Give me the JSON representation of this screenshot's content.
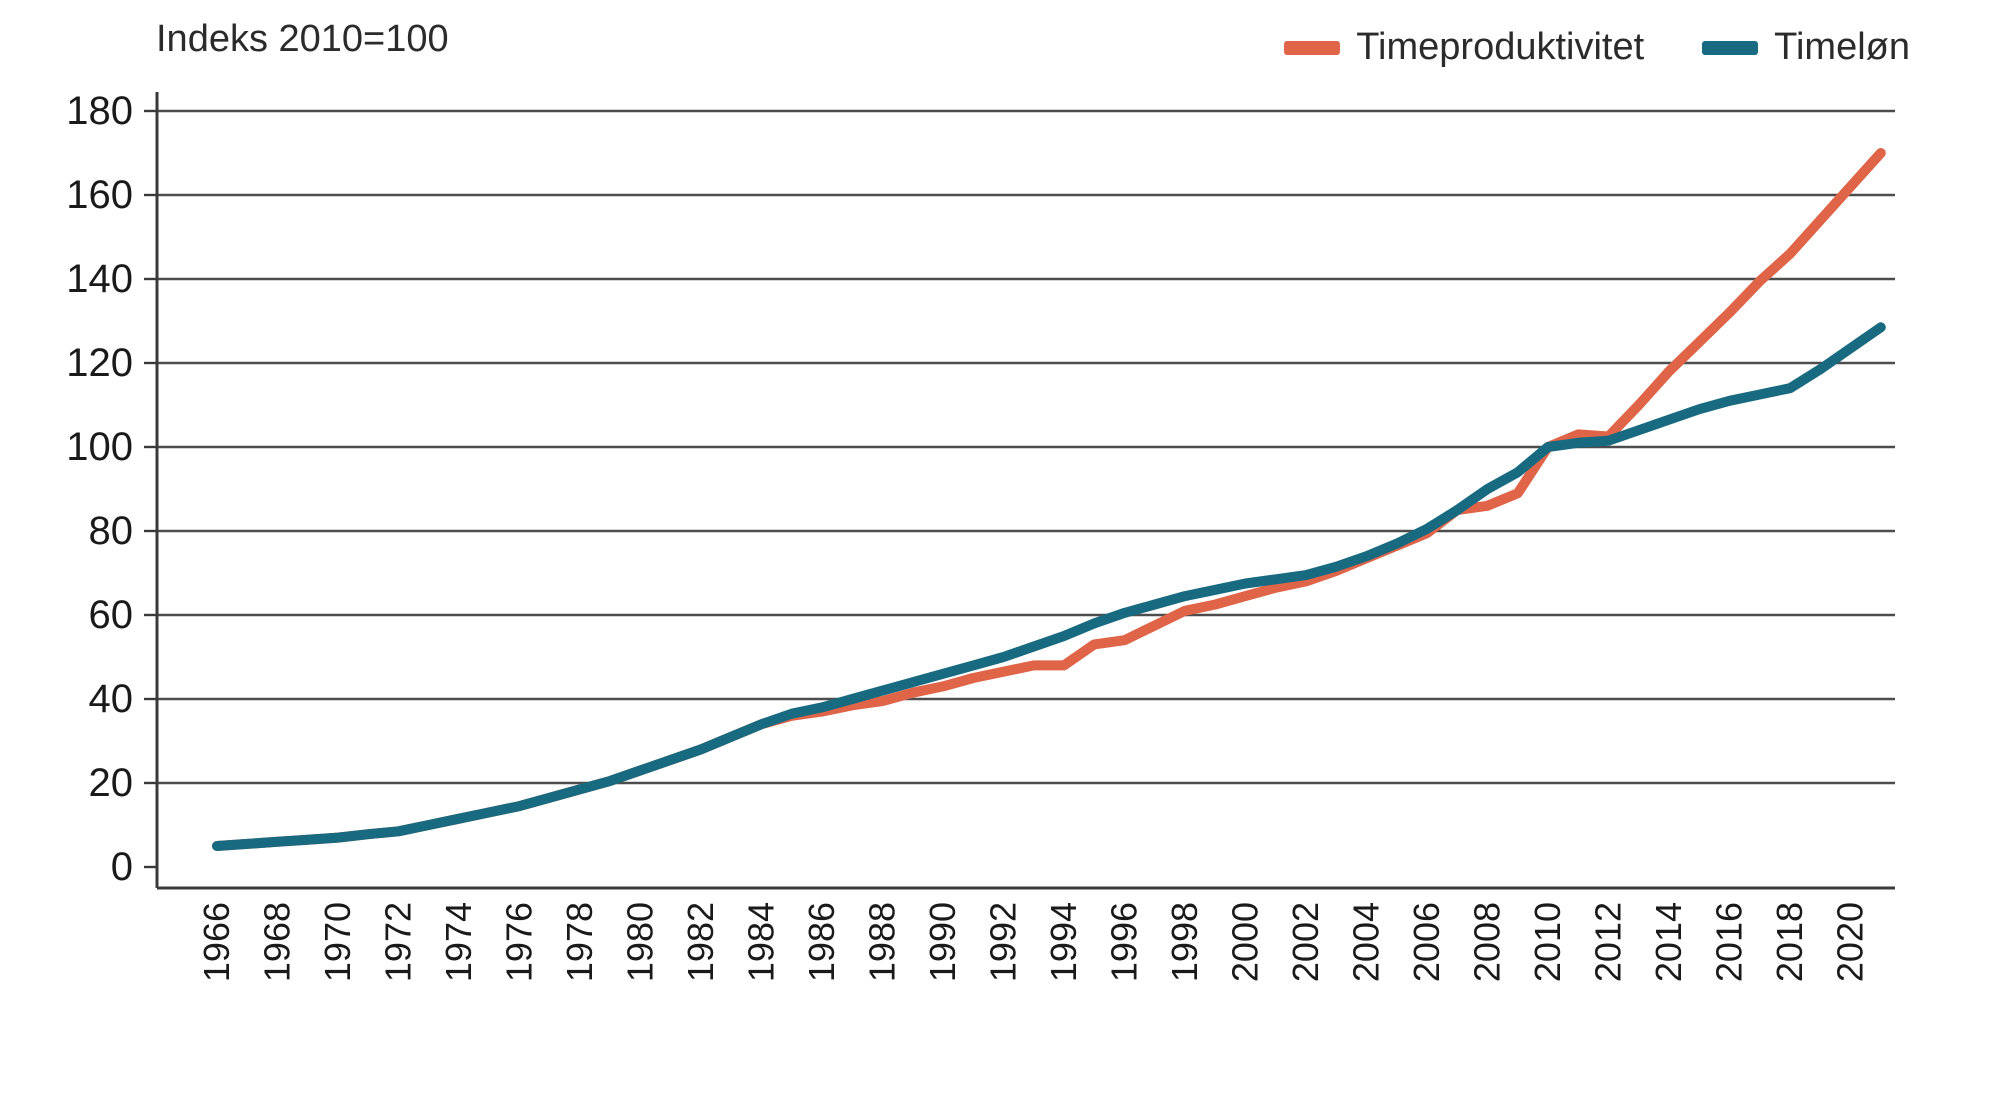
{
  "chart_data": {
    "type": "line",
    "title": "Indeks 2010=100",
    "legend_position": "top-right",
    "grid": "horizontal",
    "ylim": [
      0,
      180
    ],
    "ytick_step": 20,
    "xticks": [
      1966,
      1968,
      1970,
      1972,
      1974,
      1976,
      1978,
      1980,
      1982,
      1984,
      1986,
      1988,
      1990,
      1992,
      1994,
      1996,
      1998,
      2000,
      2002,
      2004,
      2006,
      2008,
      2010,
      2012,
      2014,
      2016,
      2018,
      2020
    ],
    "x": [
      1966,
      1967,
      1968,
      1969,
      1970,
      1971,
      1972,
      1973,
      1974,
      1975,
      1976,
      1977,
      1978,
      1979,
      1980,
      1981,
      1982,
      1983,
      1984,
      1985,
      1986,
      1987,
      1988,
      1989,
      1990,
      1991,
      1992,
      1993,
      1994,
      1995,
      1996,
      1997,
      1998,
      1999,
      2000,
      2001,
      2002,
      2003,
      2004,
      2005,
      2006,
      2007,
      2008,
      2009,
      2010,
      2011,
      2012,
      2013,
      2014,
      2015,
      2016,
      2017,
      2018,
      2019,
      2020,
      2021
    ],
    "series": [
      {
        "name": "Timeproduktivitet",
        "color": "#DF6448",
        "values": [
          5,
          5.5,
          6,
          6.5,
          7,
          7.8,
          8.5,
          10,
          11.5,
          13,
          14.5,
          16.5,
          18.5,
          20.5,
          23,
          25.5,
          28,
          31,
          34,
          36,
          37,
          38.5,
          39.5,
          41.5,
          43,
          45,
          46.5,
          48,
          48,
          53,
          54,
          57.5,
          61,
          62.5,
          64.5,
          66.5,
          68,
          70.5,
          73.5,
          76.5,
          79.5,
          85,
          86,
          89,
          100,
          103,
          102.5,
          110,
          118,
          125,
          132,
          139.5,
          146,
          154,
          162,
          170
        ]
      },
      {
        "name": "Timeløn",
        "color": "#186A80",
        "values": [
          5,
          5.5,
          6,
          6.5,
          7,
          7.8,
          8.5,
          10,
          11.5,
          13,
          14.5,
          16.5,
          18.5,
          20.5,
          23,
          25.5,
          28,
          31,
          34,
          36.5,
          38,
          40,
          42,
          44,
          46,
          48,
          50,
          52.5,
          55,
          58,
          60.5,
          62.5,
          64.5,
          66,
          67.5,
          68.5,
          69.5,
          71.5,
          74,
          77,
          80.5,
          85,
          90,
          94,
          100,
          101,
          101.5,
          104,
          106.5,
          109,
          111,
          112.5,
          114,
          118.5,
          123.5,
          128.5
        ]
      }
    ]
  },
  "colors": {
    "grid": "#4d4d4d",
    "axis": "#3a3a3a",
    "tick_text": "#1a1a1a"
  }
}
